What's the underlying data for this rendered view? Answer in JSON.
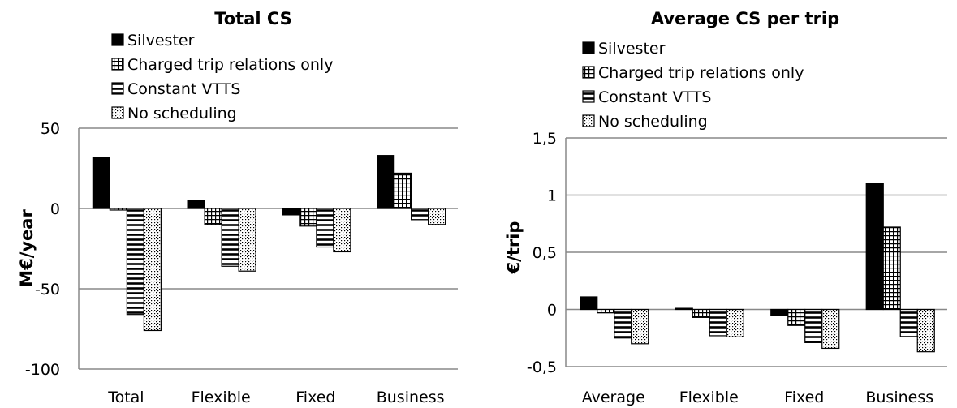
{
  "chart_data": [
    {
      "type": "bar",
      "title": "Total CS",
      "ylabel": "M€/year",
      "xlabel": "",
      "ylim": [
        -100,
        50
      ],
      "yticks": [
        50,
        0,
        -50,
        -100
      ],
      "ytick_labels": [
        "50",
        "0",
        "-50",
        "-100"
      ],
      "categories": [
        "Total",
        "Flexible",
        "Fixed",
        "Business"
      ],
      "legend_position": "top-left",
      "grid": true,
      "series": [
        {
          "name": "Silvester",
          "pattern": "solid",
          "values": [
            32,
            5,
            -4,
            33
          ]
        },
        {
          "name": "Charged trip relations only",
          "pattern": "grid",
          "values": [
            -1,
            -10,
            -11,
            22
          ]
        },
        {
          "name": "Constant VTTS",
          "pattern": "hlines",
          "values": [
            -66,
            -36,
            -24,
            -7
          ]
        },
        {
          "name": "No scheduling",
          "pattern": "dots",
          "values": [
            -76,
            -39,
            -27,
            -10
          ]
        }
      ]
    },
    {
      "type": "bar",
      "title": "Average CS per trip",
      "ylabel": "€/trip",
      "xlabel": "",
      "ylim": [
        -0.5,
        1.5
      ],
      "yticks": [
        1.5,
        1,
        0.5,
        0,
        -0.5
      ],
      "ytick_labels": [
        "1,5",
        "1",
        "0,5",
        "0",
        "-0,5"
      ],
      "categories": [
        "Average",
        "Flexible",
        "Fixed",
        "Business"
      ],
      "legend_position": "top-left",
      "grid": true,
      "series": [
        {
          "name": "Silvester",
          "pattern": "solid",
          "values": [
            0.11,
            0.01,
            -0.05,
            1.1
          ]
        },
        {
          "name": "Charged trip relations only",
          "pattern": "grid",
          "values": [
            -0.03,
            -0.07,
            -0.14,
            0.72
          ]
        },
        {
          "name": "Constant VTTS",
          "pattern": "hlines",
          "values": [
            -0.25,
            -0.23,
            -0.29,
            -0.24
          ]
        },
        {
          "name": "No scheduling",
          "pattern": "dots",
          "values": [
            -0.3,
            -0.24,
            -0.34,
            -0.37
          ]
        }
      ]
    }
  ]
}
